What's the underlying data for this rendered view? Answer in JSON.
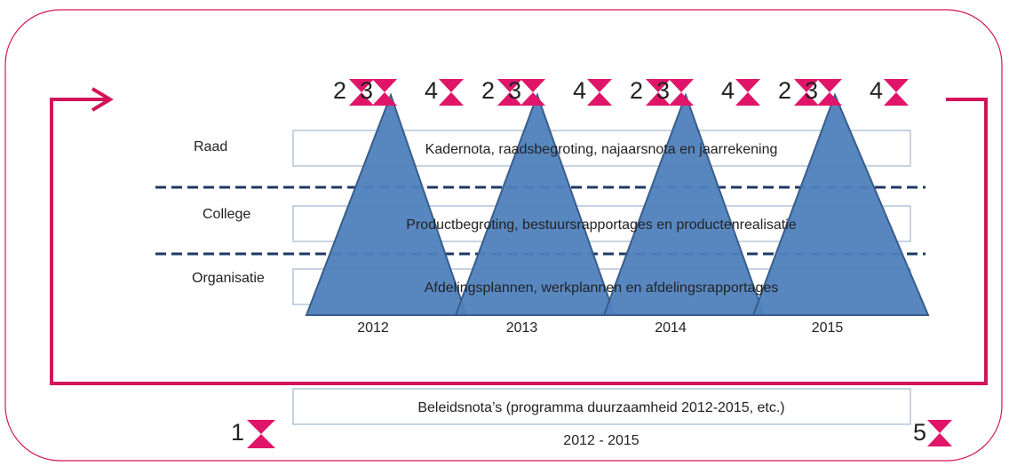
{
  "rows": [
    {
      "label": "Raad",
      "text": "Kadernota, raadsbegroting, najaarsnota en jaarrekening"
    },
    {
      "label": "College",
      "text": "Productbegroting, bestuursrapportages en productenrealisatie"
    },
    {
      "label": "Organisatie",
      "text": "Afdelingsplannen, werkplannen en afdelingsrapportages"
    }
  ],
  "years": [
    "2012",
    "2013",
    "2014",
    "2015"
  ],
  "year_markers": [
    "2",
    "3",
    "4"
  ],
  "bottom": {
    "text": "Beleidsnota’s (programma duurzaamheid 2012-2015, etc.)",
    "period": "2012 - 2015"
  },
  "start_marker": "1",
  "end_marker": "5"
}
